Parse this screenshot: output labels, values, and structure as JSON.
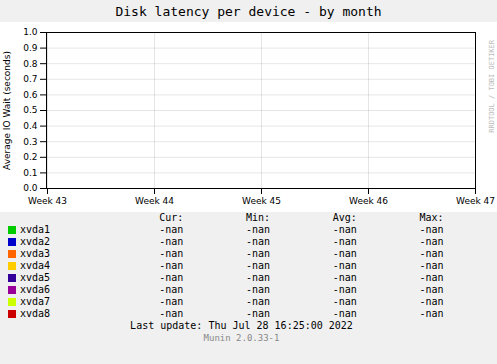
{
  "chart_data": {
    "type": "line",
    "title": "Disk latency per device - by month",
    "ylabel": "Average IO Wait (seconds)",
    "categories": [
      "Week 43",
      "Week 44",
      "Week 45",
      "Week 46",
      "Week 47"
    ],
    "series": [
      {
        "name": "xvda1",
        "color": "#00cc00",
        "values": [
          null,
          null,
          null,
          null,
          null
        ],
        "stats": [
          "-nan",
          "-nan",
          "-nan",
          "-nan"
        ]
      },
      {
        "name": "xvda2",
        "color": "#0000cc",
        "values": [
          null,
          null,
          null,
          null,
          null
        ],
        "stats": [
          "-nan",
          "-nan",
          "-nan",
          "-nan"
        ]
      },
      {
        "name": "xvda3",
        "color": "#ff6600",
        "values": [
          null,
          null,
          null,
          null,
          null
        ],
        "stats": [
          "-nan",
          "-nan",
          "-nan",
          "-nan"
        ]
      },
      {
        "name": "xvda4",
        "color": "#ffcc00",
        "values": [
          null,
          null,
          null,
          null,
          null
        ],
        "stats": [
          "-nan",
          "-nan",
          "-nan",
          "-nan"
        ]
      },
      {
        "name": "xvda5",
        "color": "#330099",
        "values": [
          null,
          null,
          null,
          null,
          null
        ],
        "stats": [
          "-nan",
          "-nan",
          "-nan",
          "-nan"
        ]
      },
      {
        "name": "xvda6",
        "color": "#990099",
        "values": [
          null,
          null,
          null,
          null,
          null
        ],
        "stats": [
          "-nan",
          "-nan",
          "-nan",
          "-nan"
        ]
      },
      {
        "name": "xvda7",
        "color": "#ccff00",
        "values": [
          null,
          null,
          null,
          null,
          null
        ],
        "stats": [
          "-nan",
          "-nan",
          "-nan",
          "-nan"
        ]
      },
      {
        "name": "xvda8",
        "color": "#cc0000",
        "values": [
          null,
          null,
          null,
          null,
          null
        ],
        "stats": [
          "-nan",
          "-nan",
          "-nan",
          "-nan"
        ]
      }
    ],
    "legend_columns": [
      "Cur:",
      "Min:",
      "Avg:",
      "Max:"
    ],
    "ylim": [
      0.0,
      1.0
    ],
    "yticks": [
      {
        "value": 0,
        "label": "0.0"
      },
      0.1,
      0.2,
      0.3,
      0.4,
      0.5,
      0.6,
      0.7,
      0.8,
      0.9,
      {
        "value": 1,
        "label": "1.0"
      }
    ],
    "grid": true,
    "legend": "bottom",
    "annotations": [
      "Last update:  Thu Jul 28 16:25:00 2022",
      "Munin 2.0.33-1",
      "RRDTOOL / TOBI OETIKER"
    ]
  }
}
